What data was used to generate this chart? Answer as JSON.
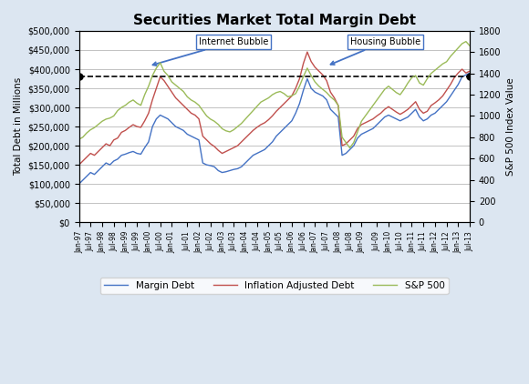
{
  "title": "Securities Market Total Margin Debt",
  "ylabel_left": "Total Debt in Millions",
  "ylabel_right": "S&P 500 Index Value",
  "background_color": "#dce6f1",
  "plot_bg_color": "#ffffff",
  "dashed_line_value": 381000,
  "margin_debt": [
    100000,
    110000,
    120000,
    130000,
    125000,
    135000,
    145000,
    155000,
    150000,
    160000,
    165000,
    175000,
    178000,
    182000,
    185000,
    180000,
    178000,
    195000,
    210000,
    250000,
    270000,
    280000,
    275000,
    270000,
    260000,
    250000,
    245000,
    240000,
    230000,
    225000,
    220000,
    215000,
    155000,
    150000,
    148000,
    145000,
    135000,
    130000,
    132000,
    135000,
    138000,
    140000,
    145000,
    155000,
    165000,
    175000,
    180000,
    185000,
    190000,
    200000,
    210000,
    225000,
    235000,
    245000,
    255000,
    265000,
    285000,
    310000,
    345000,
    375000,
    350000,
    340000,
    335000,
    330000,
    320000,
    295000,
    285000,
    275000,
    175000,
    180000,
    190000,
    200000,
    220000,
    230000,
    235000,
    240000,
    245000,
    255000,
    265000,
    275000,
    280000,
    275000,
    270000,
    265000,
    270000,
    275000,
    285000,
    295000,
    275000,
    265000,
    270000,
    280000,
    285000,
    295000,
    305000,
    315000,
    330000,
    345000,
    360000,
    380000,
    385000,
    390000
  ],
  "inflation_adjusted": [
    150000,
    160000,
    170000,
    180000,
    175000,
    185000,
    195000,
    205000,
    200000,
    215000,
    220000,
    235000,
    240000,
    248000,
    255000,
    250000,
    248000,
    265000,
    285000,
    320000,
    350000,
    380000,
    370000,
    355000,
    340000,
    325000,
    315000,
    305000,
    295000,
    285000,
    280000,
    270000,
    225000,
    215000,
    205000,
    198000,
    188000,
    180000,
    185000,
    190000,
    195000,
    200000,
    210000,
    220000,
    230000,
    240000,
    248000,
    255000,
    260000,
    268000,
    278000,
    290000,
    300000,
    310000,
    320000,
    330000,
    350000,
    375000,
    415000,
    445000,
    420000,
    405000,
    395000,
    385000,
    370000,
    340000,
    325000,
    305000,
    200000,
    205000,
    215000,
    225000,
    245000,
    255000,
    260000,
    265000,
    270000,
    278000,
    285000,
    295000,
    302000,
    295000,
    288000,
    282000,
    288000,
    295000,
    305000,
    315000,
    295000,
    285000,
    290000,
    305000,
    312000,
    320000,
    330000,
    345000,
    360000,
    378000,
    390000,
    400000,
    390000,
    395000
  ],
  "sp500": [
    780,
    800,
    840,
    870,
    890,
    920,
    950,
    970,
    980,
    1000,
    1050,
    1080,
    1100,
    1130,
    1150,
    1120,
    1100,
    1200,
    1280,
    1380,
    1450,
    1500,
    1420,
    1380,
    1320,
    1290,
    1260,
    1230,
    1180,
    1150,
    1130,
    1100,
    1050,
    1000,
    970,
    950,
    920,
    880,
    860,
    850,
    870,
    900,
    930,
    970,
    1010,
    1050,
    1090,
    1130,
    1150,
    1170,
    1200,
    1220,
    1230,
    1210,
    1180,
    1190,
    1210,
    1280,
    1370,
    1450,
    1380,
    1320,
    1280,
    1250,
    1220,
    1180,
    1150,
    1100,
    800,
    750,
    700,
    750,
    850,
    950,
    1000,
    1050,
    1100,
    1150,
    1200,
    1250,
    1280,
    1250,
    1220,
    1200,
    1250,
    1310,
    1360,
    1380,
    1310,
    1290,
    1350,
    1400,
    1430,
    1460,
    1490,
    1510,
    1560,
    1600,
    1640,
    1680,
    1700,
    1660
  ],
  "tick_labels": [
    "Jan-97",
    "Jul-97",
    "Jan-98",
    "Jul-98",
    "Jan-99",
    "Jul-99",
    "Jan-00",
    "Jul-00",
    "Jan-01",
    "Jul-01",
    "Jan-02",
    "Jul-02",
    "Jan-03",
    "Jul-03",
    "Jan-04",
    "Jul-04",
    "Jan-05",
    "Jul-05",
    "Jan-06",
    "Jul-06",
    "Jan-07",
    "Jul-07",
    "Jan-08",
    "Jul-08",
    "Jan-09",
    "Jul-09",
    "Jan-10",
    "Jul-10",
    "Jan-11",
    "Jul-11",
    "Jan-12",
    "Jul-12",
    "Jan-13",
    "Jul-13"
  ],
  "ylim_left": [
    0,
    500000
  ],
  "ylim_right": [
    0,
    1800
  ],
  "line_colors": {
    "margin_debt": "#4472c4",
    "inflation_adjusted": "#c0504d",
    "sp500": "#9bbb59"
  }
}
